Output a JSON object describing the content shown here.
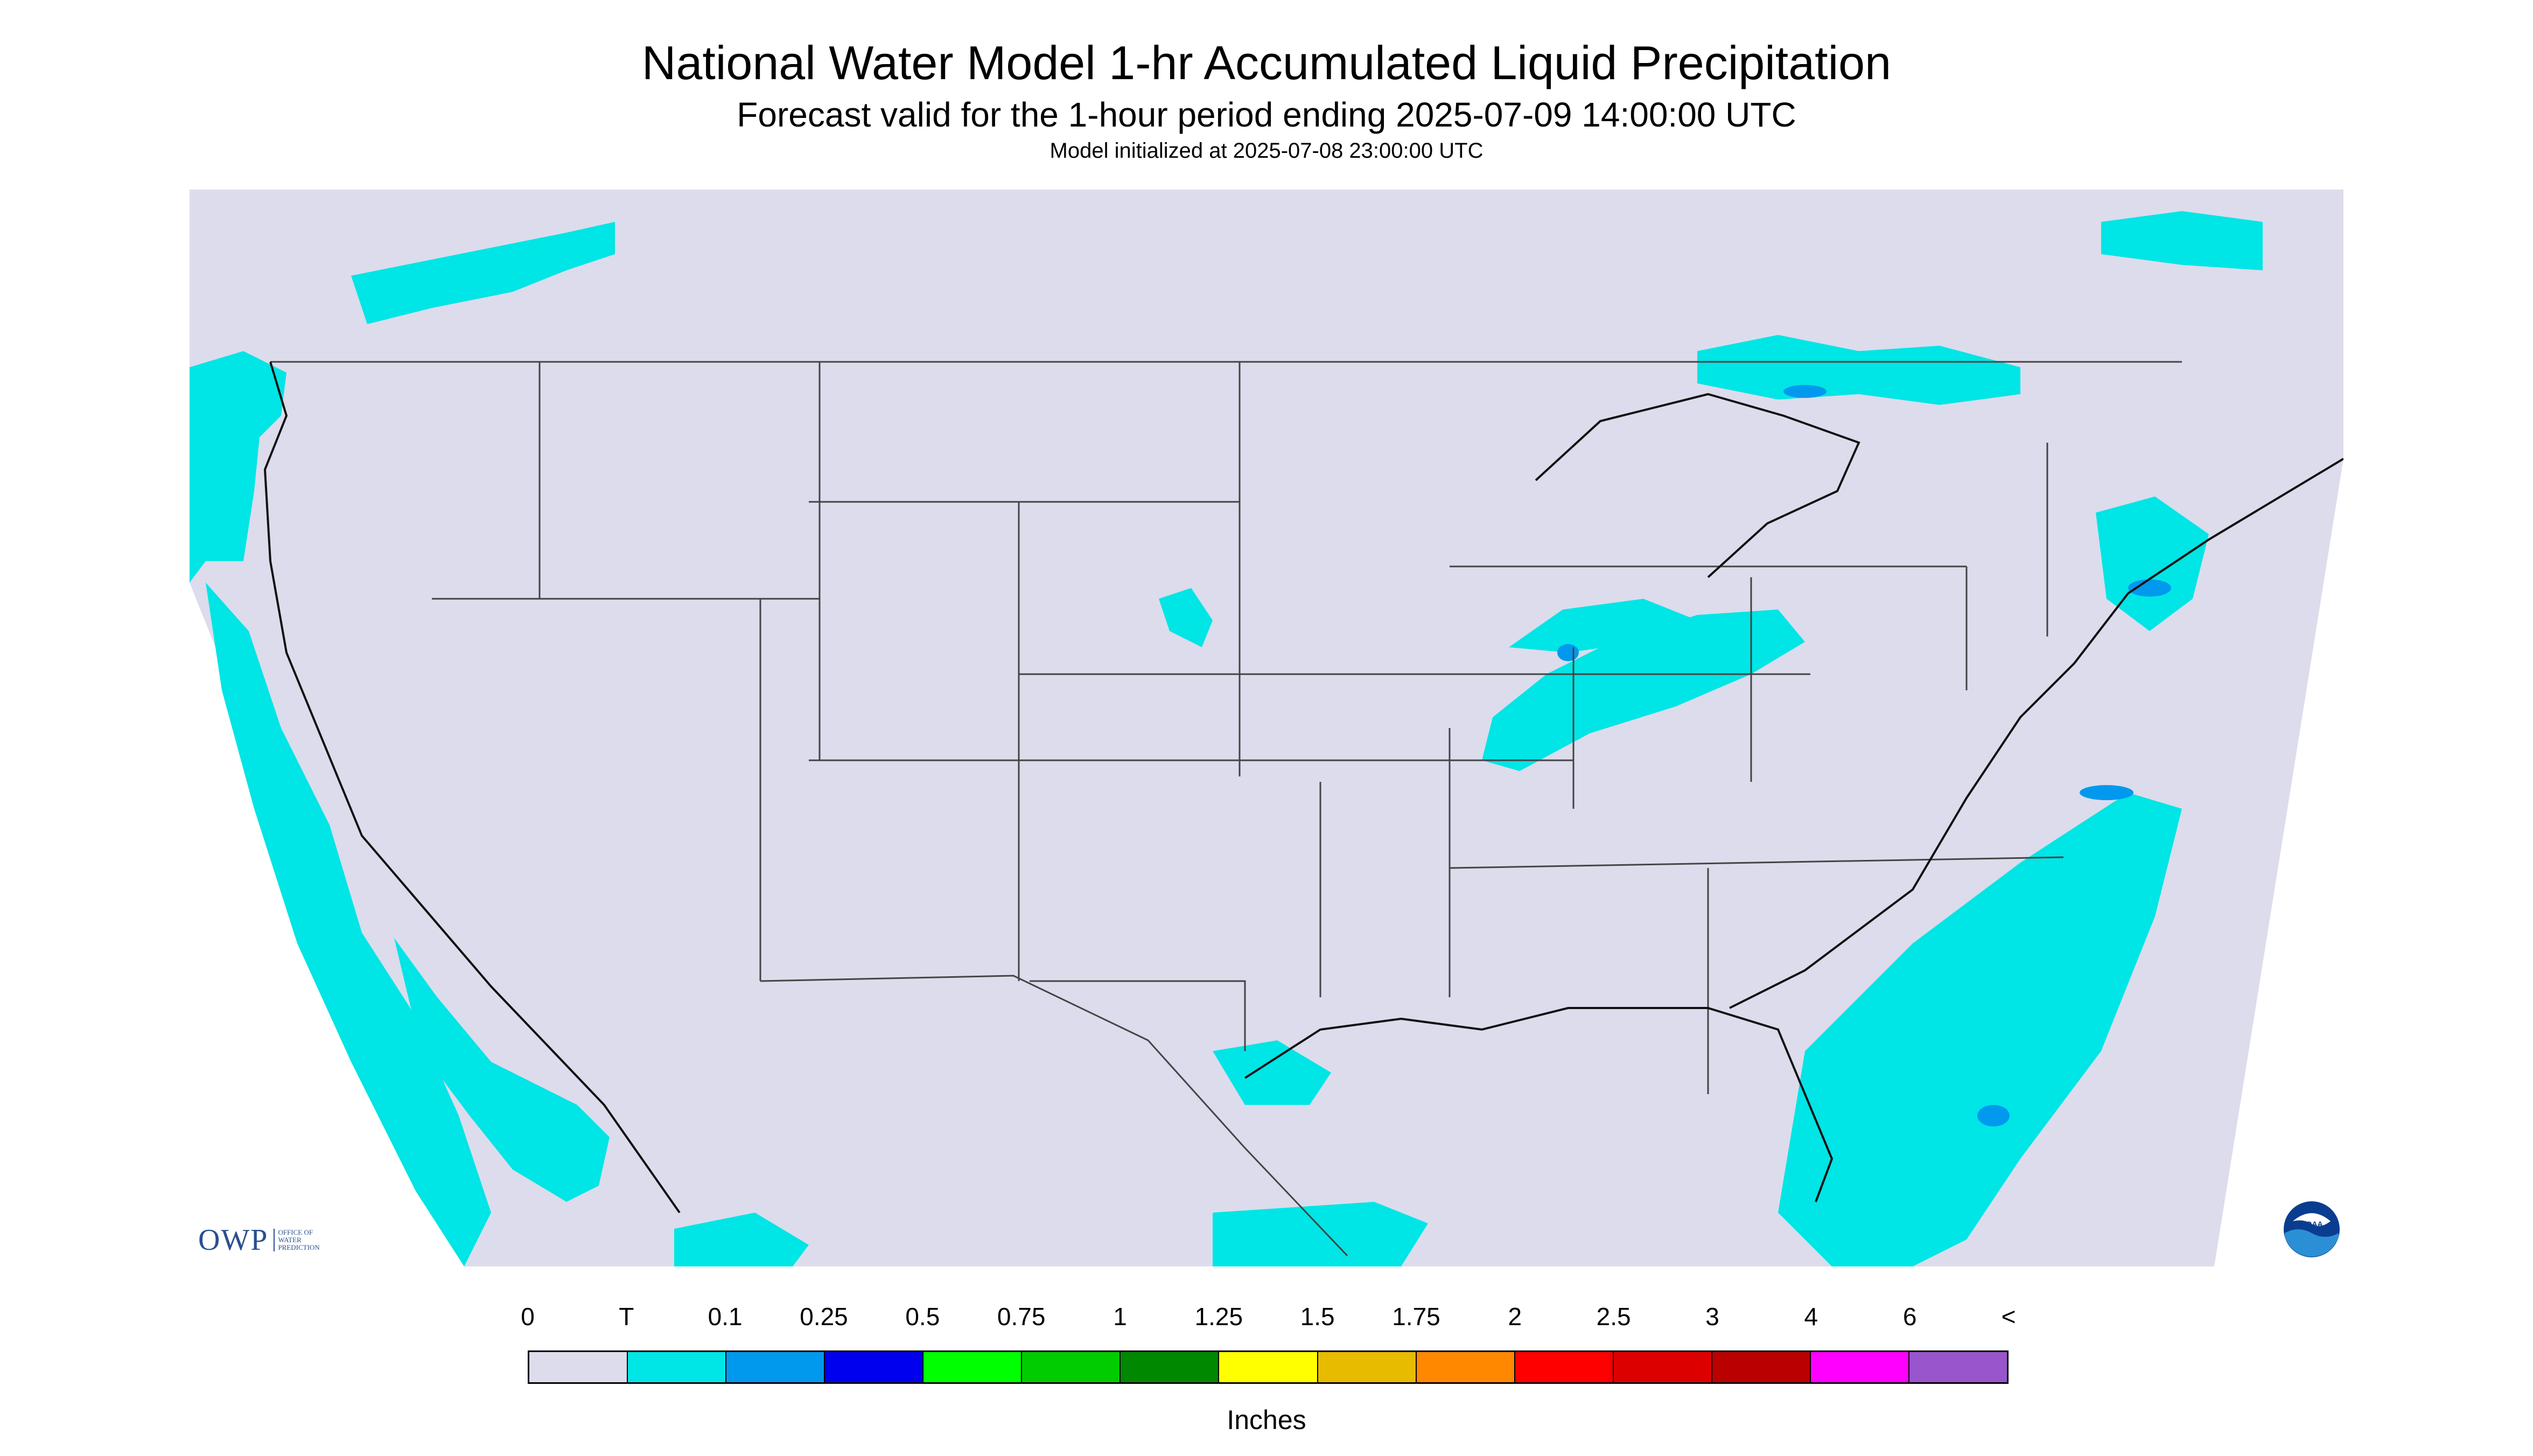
{
  "title": "National Water Model 1-hr Accumulated Liquid Precipitation",
  "subtitle": "Forecast valid for the 1-hour period ending 2025-07-09 14:00:00 UTC",
  "init_text": "Model initialized at 2025-07-08 23:00:00 UTC",
  "legend": {
    "labels": [
      "0",
      "T",
      "0.1",
      "0.25",
      "0.5",
      "0.75",
      "1",
      "1.25",
      "1.5",
      "1.75",
      "2",
      "2.5",
      "3",
      "4",
      "6",
      "<"
    ],
    "colors": [
      "#dcdcec",
      "#00e5e5",
      "#0099ee",
      "#0000ee",
      "#00ff00",
      "#00cc00",
      "#008800",
      "#ffff00",
      "#e6bb00",
      "#ff8800",
      "#ff0000",
      "#dd0000",
      "#bb0000",
      "#ff00ff",
      "#9955cc"
    ],
    "units": "Inches"
  },
  "logos": {
    "owp": "OWP",
    "owp_sub": [
      "OFFICE OF",
      "WATER",
      "PREDICTION"
    ],
    "noaa": "NOAA"
  },
  "map": {
    "background_color": "#dcdcec",
    "line_color": "#444444",
    "precip_trace_color": "#00e5e5",
    "precip_light_color": "#0099ee"
  }
}
